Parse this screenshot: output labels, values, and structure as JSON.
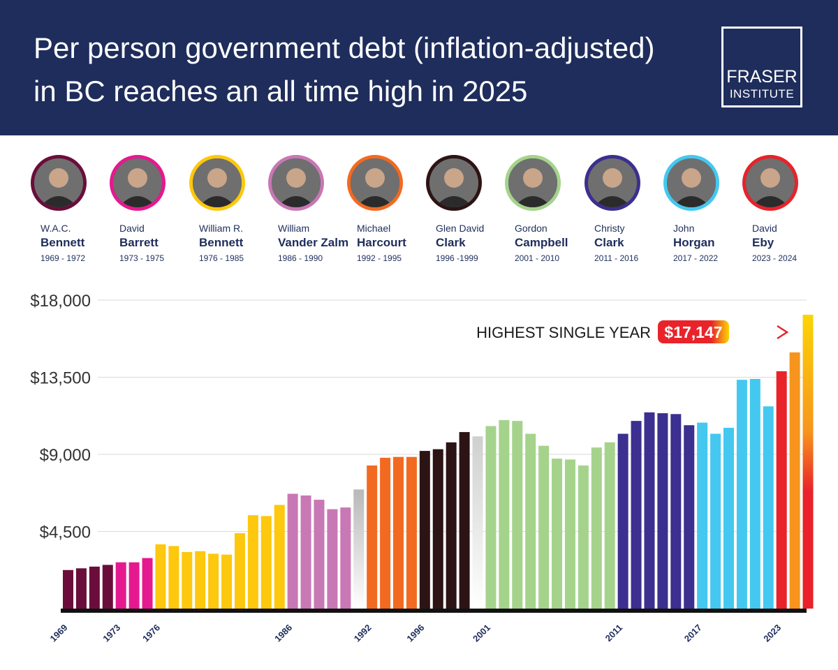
{
  "header": {
    "title_line1": "Per person government debt (inflation-adjusted)",
    "title_line2": "in BC reaches an all time high in 2025",
    "logo_top": "FRASER",
    "logo_bottom": "INSTITUTE",
    "background": "#1e2d5b"
  },
  "leaders": [
    {
      "first": "W.A.C.",
      "last": "Bennett",
      "years": "1969 - 1972",
      "color": "#6b0d3b"
    },
    {
      "first": "David",
      "last": "Barrett",
      "years": "1973 - 1975",
      "color": "#e5198f"
    },
    {
      "first": "William R.",
      "last": "Bennett",
      "years": "1976 - 1985",
      "color": "#fdc80d"
    },
    {
      "first": "William",
      "last": "Vander Zalm",
      "years": "1986 - 1990",
      "color": "#c878b4"
    },
    {
      "first": "Michael",
      "last": "Harcourt",
      "years": "1992 - 1995",
      "color": "#f26a21"
    },
    {
      "first": "Glen David",
      "last": "Clark",
      "years": "1996 -1999",
      "color": "#2d1414"
    },
    {
      "first": "Gordon",
      "last": "Campbell",
      "years": "2001 - 2010",
      "color": "#a5d38c"
    },
    {
      "first": "Christy",
      "last": "Clark",
      "years": "2011 - 2016",
      "color": "#3b2f8f"
    },
    {
      "first": "John",
      "last": "Horgan",
      "years": "2017 - 2022",
      "color": "#44c8f0"
    },
    {
      "first": "David",
      "last": "Eby",
      "years": "2023 - 2024",
      "color": "#e8232a"
    }
  ],
  "chart_data": {
    "type": "bar",
    "title": "Per person government debt (inflation-adjusted) in BC reaches an all time high in 2025",
    "x": [
      1969,
      1970,
      1971,
      1972,
      1973,
      1974,
      1975,
      1976,
      1977,
      1978,
      1979,
      1980,
      1981,
      1982,
      1983,
      1984,
      1985,
      1986,
      1987,
      1988,
      1989,
      1990,
      1991,
      1992,
      1993,
      1994,
      1995,
      1996,
      1997,
      1998,
      1999,
      2000,
      2001,
      2002,
      2003,
      2004,
      2005,
      2006,
      2007,
      2008,
      2009,
      2010,
      2011,
      2012,
      2013,
      2014,
      2015,
      2016,
      2017,
      2018,
      2019,
      2020,
      2021,
      2022,
      2023,
      2024,
      2025
    ],
    "values": [
      2250,
      2350,
      2450,
      2550,
      2700,
      2700,
      2950,
      3750,
      3650,
      3300,
      3350,
      3200,
      3150,
      4400,
      5450,
      5400,
      6050,
      6700,
      6600,
      6350,
      5800,
      5900,
      6950,
      8350,
      8800,
      8850,
      8850,
      9200,
      9300,
      9700,
      10300,
      10050,
      10650,
      11000,
      10950,
      10200,
      9500,
      8750,
      8700,
      8350,
      9400,
      9700,
      10200,
      10950,
      11450,
      11400,
      11350,
      10700,
      10850,
      10200,
      10550,
      13350,
      13400,
      11800,
      13850,
      14950,
      17147
    ],
    "ylim": [
      0,
      18000
    ],
    "yticks": [
      4500,
      9000,
      13500,
      18000
    ],
    "ytick_labels": [
      "$4,500",
      "$9,000",
      "$13,500",
      "$18,000"
    ],
    "xtick_labels": [
      "1969",
      "1973",
      "1976",
      "1986",
      "1992",
      "1996",
      "2001",
      "2011",
      "2017",
      "2023"
    ],
    "annotation": {
      "text": "HIGHEST SINGLE YEAR",
      "value_label": "$17,147"
    },
    "grid": true
  }
}
